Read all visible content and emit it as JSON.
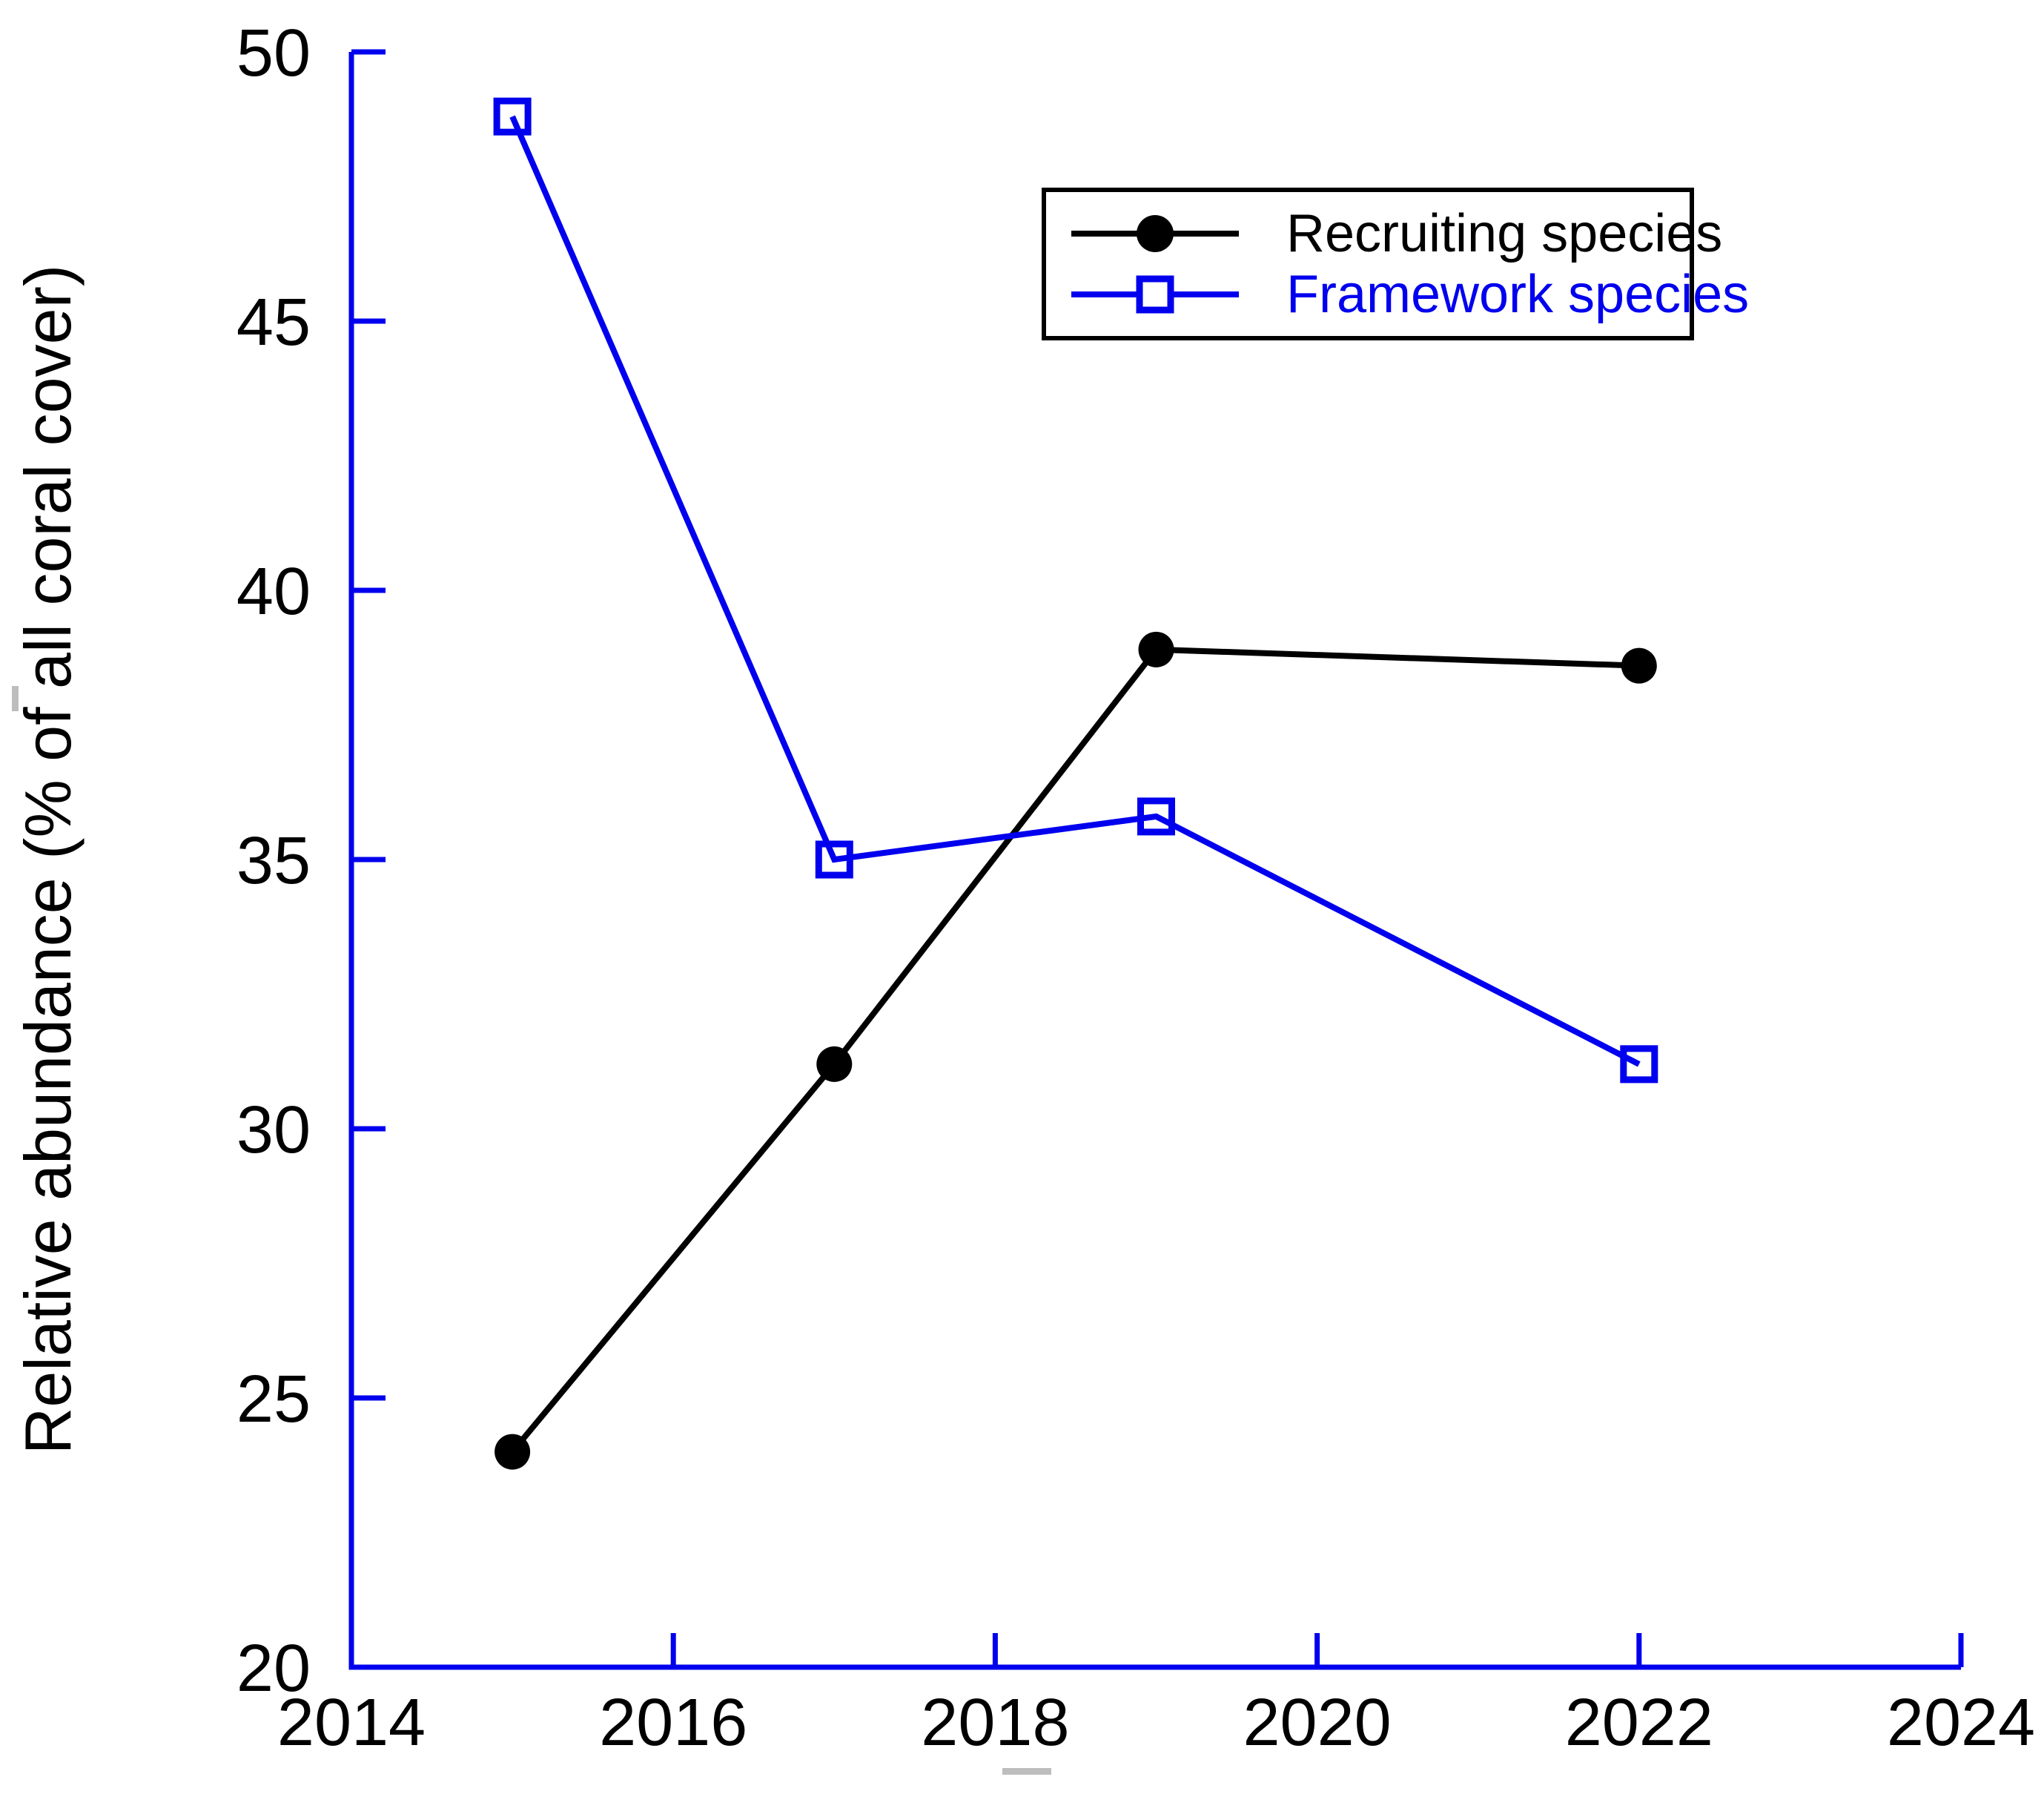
{
  "chart_data": {
    "type": "line",
    "x": [
      2015,
      2017,
      2019,
      2022
    ],
    "series": [
      {
        "name": "Recruiting species",
        "color": "#000000",
        "marker": "filled-circle",
        "values": [
          24.0,
          31.2,
          38.9,
          38.6
        ]
      },
      {
        "name": "Framework species",
        "color": "#0000EE",
        "marker": "open-square",
        "values": [
          48.8,
          35.0,
          35.8,
          31.2
        ]
      }
    ],
    "title": "",
    "xlabel": "",
    "ylabel": "Relative abundance (% of all coral cover)",
    "xlim": [
      2014,
      2024
    ],
    "ylim": [
      20,
      50
    ],
    "x_ticks": [
      2014,
      2016,
      2018,
      2020,
      2022,
      2024
    ],
    "y_ticks": [
      20,
      25,
      30,
      35,
      40,
      45,
      50
    ],
    "axis_color": "#0000EE",
    "grid": false,
    "legend_position": "top-center-right"
  }
}
